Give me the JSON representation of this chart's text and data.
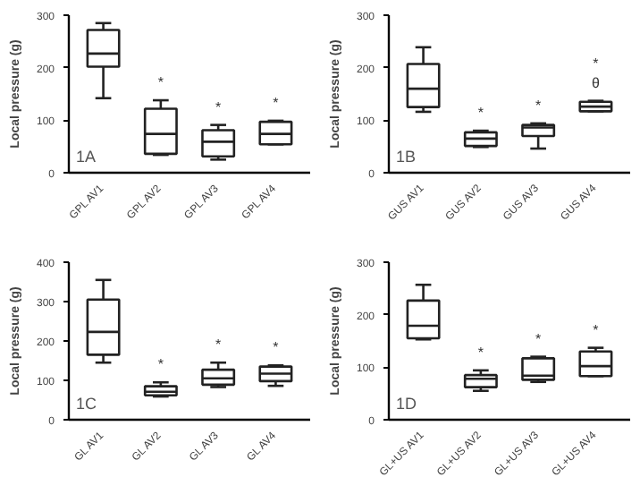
{
  "chart_data": [
    {
      "type": "box",
      "ylabel": "Local pressure (g)",
      "categories": [
        "GPL AV1",
        "GPL AV2",
        "GPL AV3",
        "GPL AV4"
      ],
      "ylim": [
        0,
        300
      ],
      "yticks": [
        0,
        100,
        200,
        300
      ],
      "grid": false,
      "boxes": [
        {
          "low": 142,
          "q1": 202,
          "median": 227,
          "q3": 272,
          "high": 285
        },
        {
          "low": 34,
          "q1": 36,
          "median": 74,
          "q3": 122,
          "high": 138
        },
        {
          "low": 25,
          "q1": 31,
          "median": 59,
          "q3": 81,
          "high": 91
        },
        {
          "low": 54,
          "q1": 54,
          "median": 74,
          "q3": 97,
          "high": 99
        }
      ],
      "annotations": [
        "1A",
        "*",
        "*",
        "*"
      ]
    },
    {
      "type": "box",
      "ylabel": "Local pressure (g)",
      "categories": [
        "GUS AV1",
        "GUS AV2",
        "GUS AV3",
        "GUS AV4"
      ],
      "ylim": [
        0,
        300
      ],
      "yticks": [
        0,
        100,
        200,
        300
      ],
      "grid": false,
      "boxes": [
        {
          "low": 116,
          "q1": 125,
          "median": 160,
          "q3": 207,
          "high": 239
        },
        {
          "low": 49,
          "q1": 51,
          "median": 65,
          "q3": 77,
          "high": 80
        },
        {
          "low": 46,
          "q1": 70,
          "median": 86,
          "q3": 91,
          "high": 94
        },
        {
          "low": 117,
          "q1": 117,
          "median": 126,
          "q3": 135,
          "high": 137
        }
      ],
      "annotations": [
        "1B",
        "*",
        "*",
        "θ",
        "*"
      ]
    },
    {
      "type": "box",
      "ylabel": "Local pressure (g)",
      "categories": [
        "GL AV1",
        "GL AV2",
        "GL AV3",
        "GL AV4"
      ],
      "ylim": [
        0,
        400
      ],
      "yticks": [
        0,
        100,
        200,
        300,
        400
      ],
      "grid": false,
      "boxes": [
        {
          "low": 145,
          "q1": 165,
          "median": 223,
          "q3": 305,
          "high": 355
        },
        {
          "low": 59,
          "q1": 62,
          "median": 71,
          "q3": 85,
          "high": 95
        },
        {
          "low": 83,
          "q1": 89,
          "median": 105,
          "q3": 127,
          "high": 145
        },
        {
          "low": 86,
          "q1": 98,
          "median": 117,
          "q3": 135,
          "high": 138
        }
      ],
      "annotations": [
        "1C",
        "*",
        "*",
        "*"
      ]
    },
    {
      "type": "box",
      "ylabel": "Local pressure (g)",
      "categories": [
        "GL+US AV1",
        "GL+US AV2",
        "GL+US AV3",
        "GL+US AV4"
      ],
      "ylim": [
        0,
        300
      ],
      "yticks": [
        0,
        100,
        200,
        300
      ],
      "grid": false,
      "boxes": [
        {
          "low": 153,
          "q1": 155,
          "median": 179,
          "q3": 227,
          "high": 257
        },
        {
          "low": 55,
          "q1": 62,
          "median": 78,
          "q3": 85,
          "high": 94
        },
        {
          "low": 72,
          "q1": 76,
          "median": 84,
          "q3": 117,
          "high": 120
        },
        {
          "low": 83,
          "q1": 83,
          "median": 102,
          "q3": 130,
          "high": 137
        }
      ],
      "annotations": [
        "1D",
        "*",
        "*",
        "*"
      ]
    }
  ]
}
